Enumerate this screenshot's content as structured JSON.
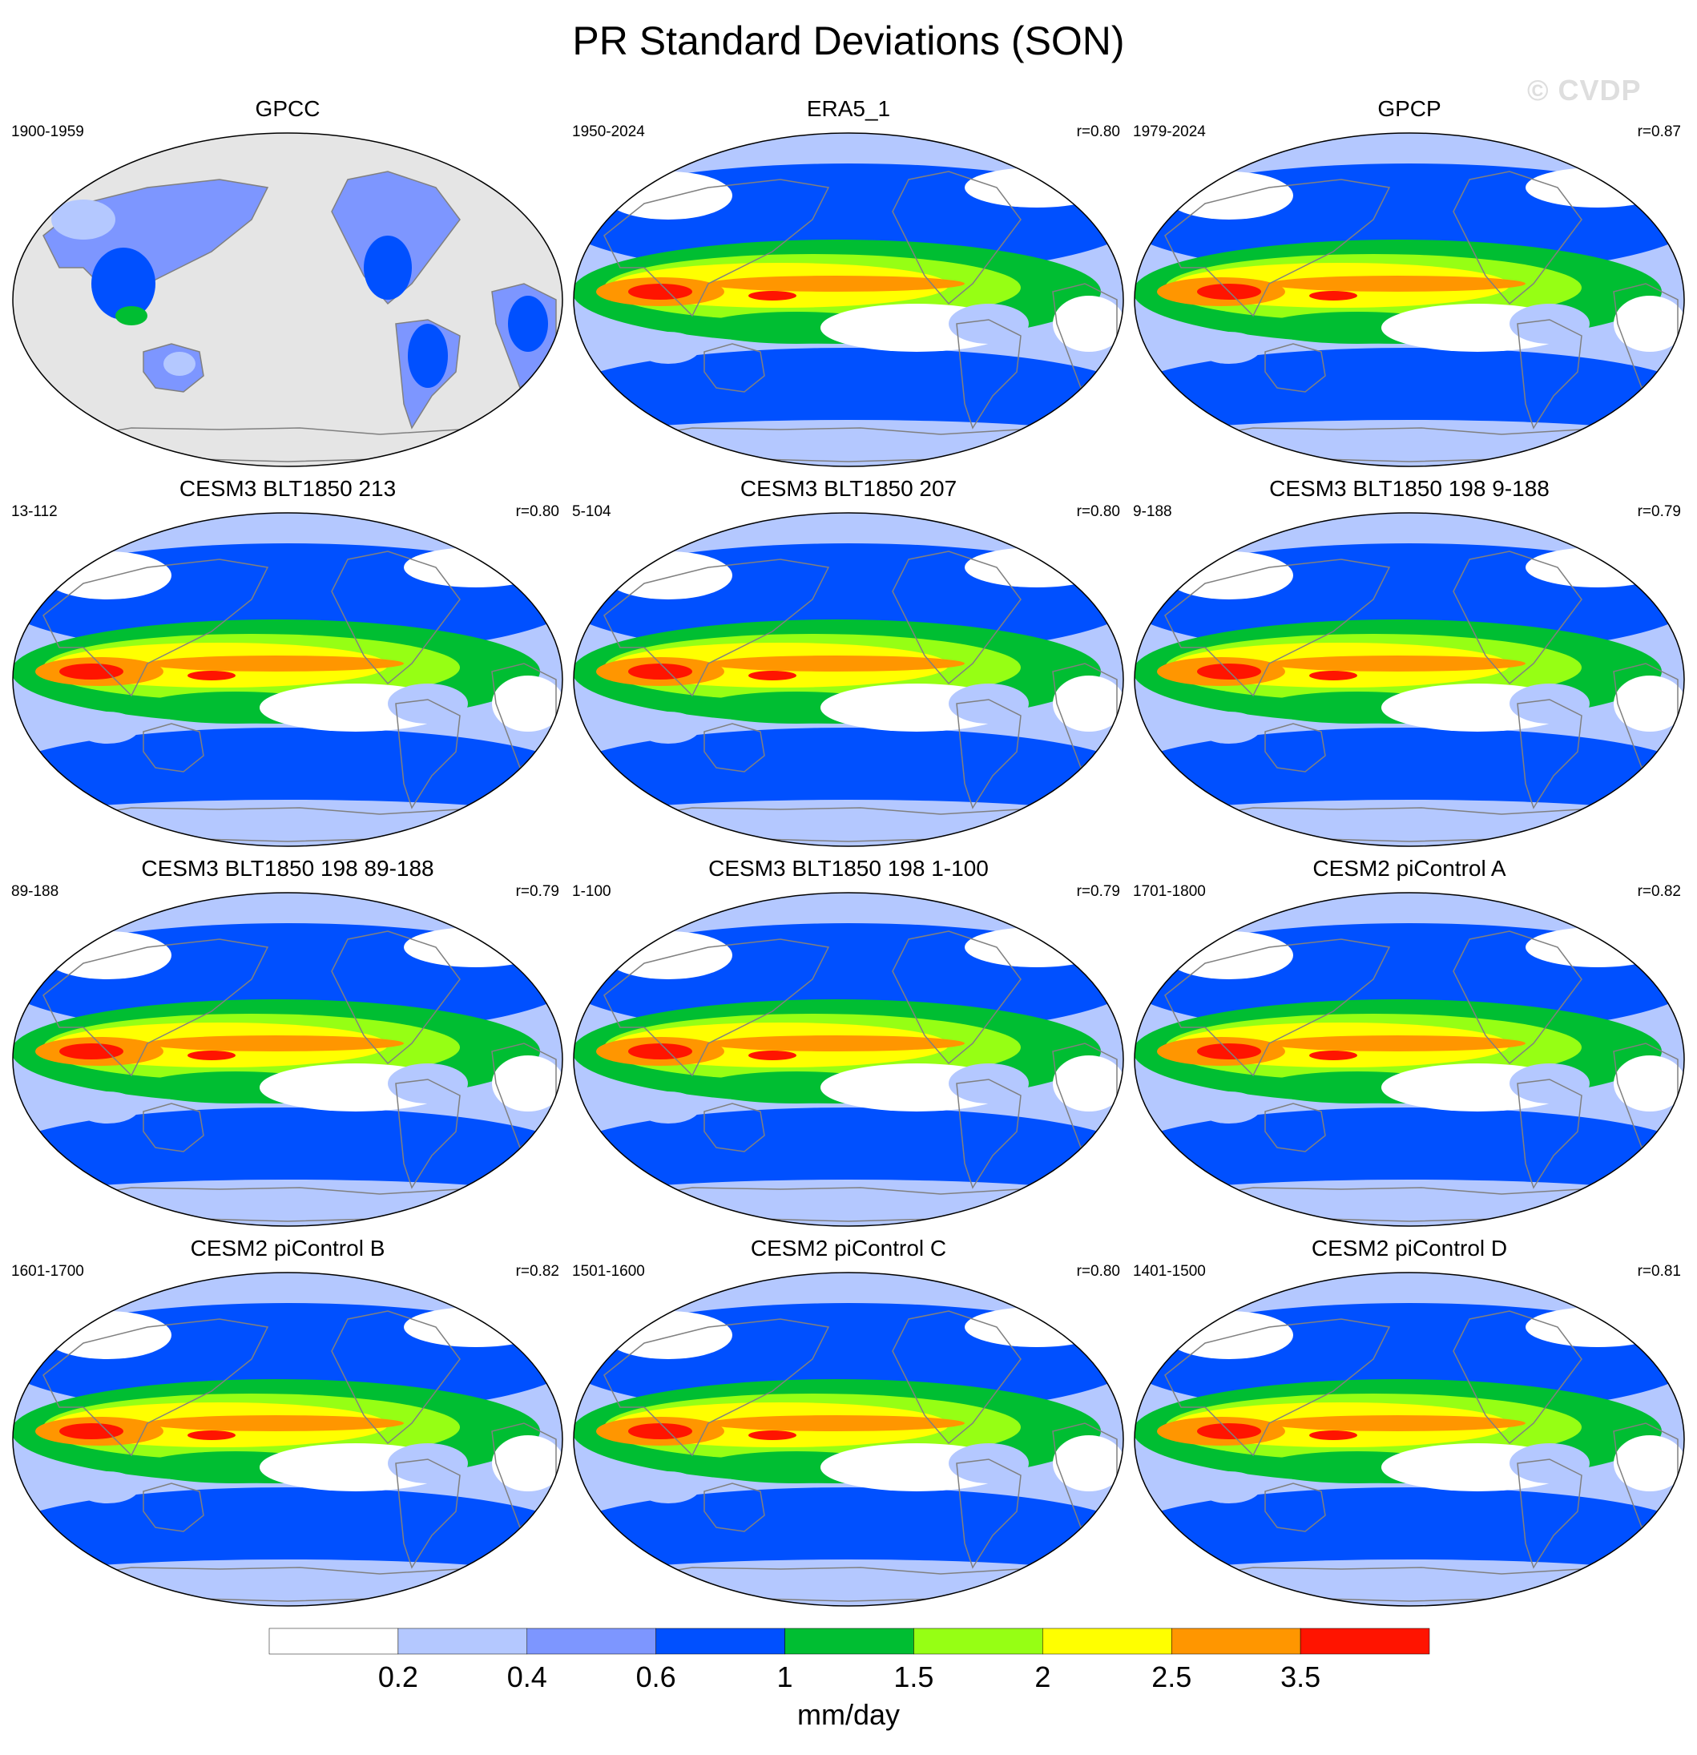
{
  "title": "PR Standard Deviations (SON)",
  "watermark": "© CVDP",
  "panels": [
    {
      "title": "GPCC",
      "years": "1900-1959",
      "corr": "",
      "land_only": true
    },
    {
      "title": "ERA5_1",
      "years": "1950-2024",
      "corr": "r=0.80",
      "land_only": false
    },
    {
      "title": "GPCP",
      "years": "1979-2024",
      "corr": "r=0.87",
      "land_only": false
    },
    {
      "title": "CESM3 BLT1850 213",
      "years": "13-112",
      "corr": "r=0.80",
      "land_only": false
    },
    {
      "title": "CESM3 BLT1850 207",
      "years": "5-104",
      "corr": "r=0.80",
      "land_only": false
    },
    {
      "title": "CESM3 BLT1850 198 9-188",
      "years": "9-188",
      "corr": "r=0.79",
      "land_only": false
    },
    {
      "title": "CESM3 BLT1850 198 89-188",
      "years": "89-188",
      "corr": "r=0.79",
      "land_only": false
    },
    {
      "title": "CESM3 BLT1850 198 1-100",
      "years": "1-100",
      "corr": "r=0.79",
      "land_only": false
    },
    {
      "title": "CESM2 piControl A",
      "years": "1701-1800",
      "corr": "r=0.82",
      "land_only": false
    },
    {
      "title": "CESM2 piControl B",
      "years": "1601-1700",
      "corr": "r=0.82",
      "land_only": false
    },
    {
      "title": "CESM2 piControl C",
      "years": "1501-1600",
      "corr": "r=0.80",
      "land_only": false
    },
    {
      "title": "CESM2 piControl D",
      "years": "1401-1500",
      "corr": "r=0.81",
      "land_only": false
    }
  ],
  "colorbar": {
    "colors": [
      "#ffffff",
      "#b4c8ff",
      "#7d96ff",
      "#0050ff",
      "#00be32",
      "#96ff14",
      "#ffff00",
      "#ff9600",
      "#ff1400"
    ],
    "labels": [
      "0.2",
      "0.4",
      "0.6",
      "1",
      "1.5",
      "2",
      "2.5",
      "3.5"
    ],
    "units": "mm/day"
  },
  "colors": {
    "missing_data": "#e5e5e5",
    "coastline": "#808080",
    "map_outline": "#000000"
  }
}
